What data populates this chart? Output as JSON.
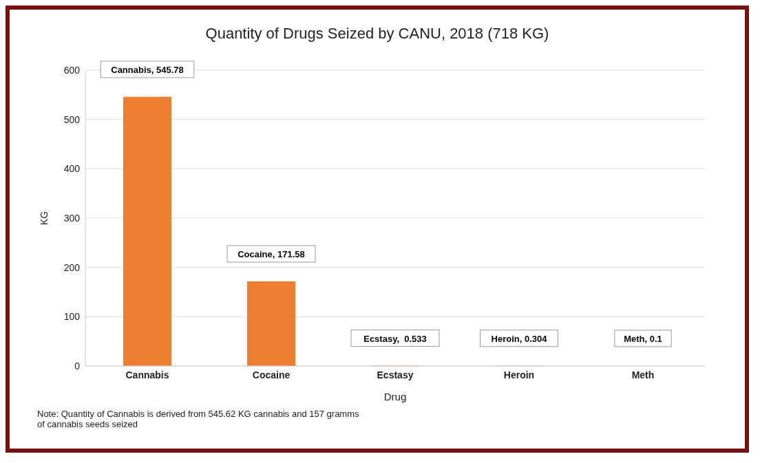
{
  "chart_data": {
    "type": "bar",
    "title": "Quantity of Drugs Seized by CANU, 2018 (718 KG)",
    "xlabel": "Drug",
    "ylabel": "KG",
    "categories": [
      "Cannabis",
      "Cocaine",
      "Ecstasy",
      "Heroin",
      "Meth"
    ],
    "values": [
      545.78,
      171.58,
      0.533,
      0.304,
      0.1
    ],
    "value_labels": [
      "Cannabis, 545.78",
      "Cocaine, 171.58",
      "Ecstasy,  0.533",
      "Heroin, 0.304",
      "Meth, 0.1"
    ],
    "color": "#ed7d31",
    "ylim": [
      0,
      600
    ],
    "yticks": [
      0,
      100,
      200,
      300,
      400,
      500,
      600
    ],
    "grid": "y",
    "annotations": [
      "Note: Quantity of Cannabis is derived from 545.62 KG cannabis and 157 gramms of cannabis seeds seized"
    ]
  }
}
